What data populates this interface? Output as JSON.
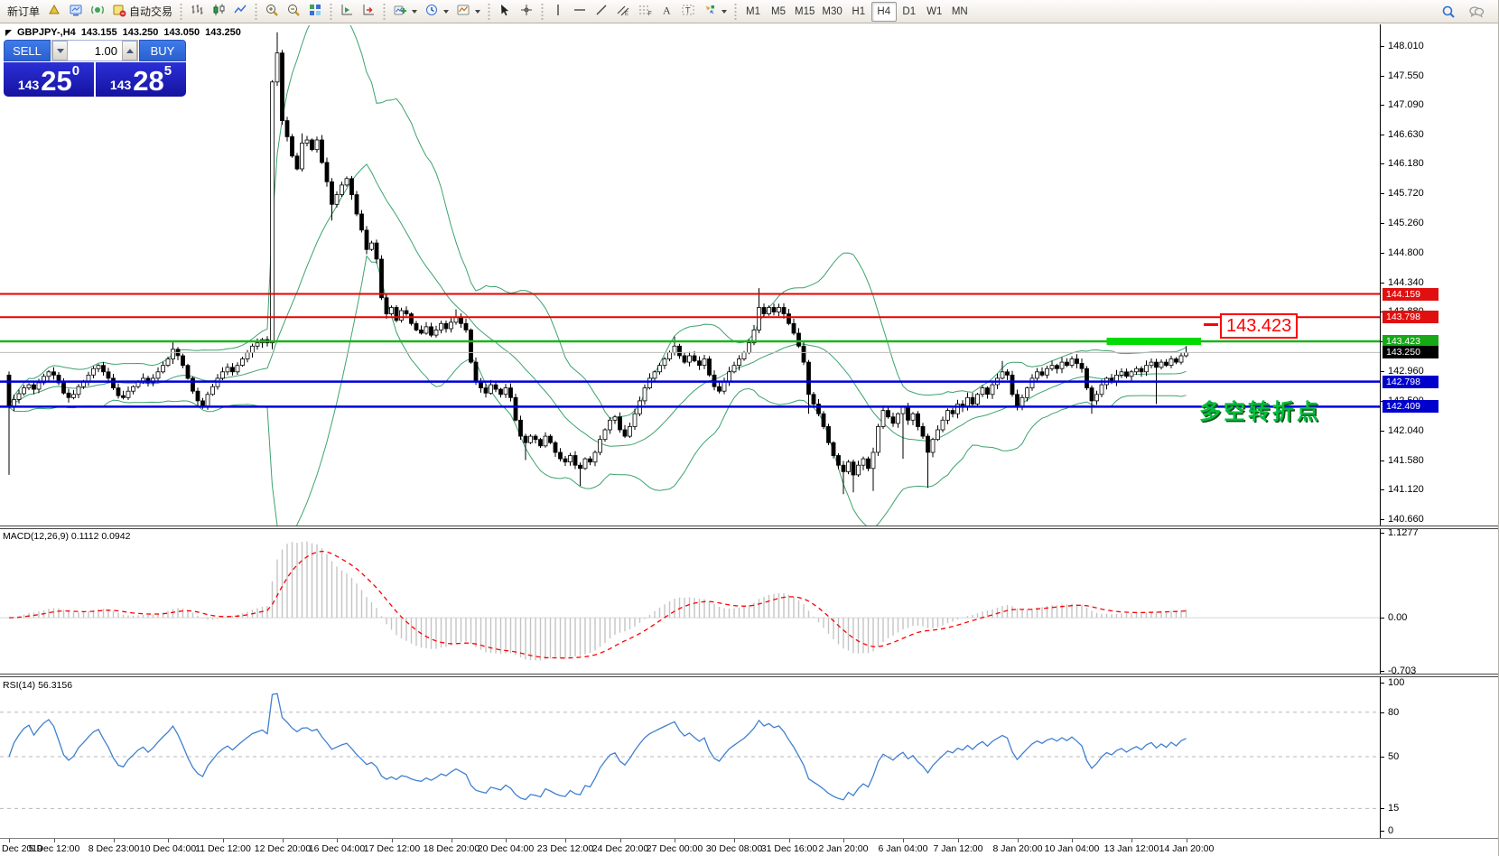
{
  "toolbar": {
    "new_order_label": "新订单",
    "autotrading_label": "自动交易",
    "left_groups": [
      {
        "items": [
          {
            "name": "new-order-button",
            "label": "新订单"
          },
          {
            "name": "metaeditor-button",
            "icon": "metaeditor"
          },
          {
            "name": "terminal-button",
            "icon": "terminal"
          },
          {
            "name": "news-button",
            "icon": "news"
          },
          {
            "name": "autotrading-button",
            "icon": "autotrading",
            "label": "自动交易"
          }
        ]
      },
      {
        "items": [
          {
            "name": "bar-chart-button",
            "icon": "bars"
          },
          {
            "name": "candlestick-chart-button",
            "icon": "candles"
          },
          {
            "name": "line-chart-button",
            "icon": "linechart"
          }
        ]
      },
      {
        "items": [
          {
            "name": "zoom-in-button",
            "icon": "zoomin"
          },
          {
            "name": "zoom-out-button",
            "icon": "zoomout"
          },
          {
            "name": "tile-windows-button",
            "icon": "tiles"
          }
        ]
      },
      {
        "items": [
          {
            "name": "auto-scroll-button",
            "icon": "autoscroll"
          },
          {
            "name": "chart-shift-button",
            "icon": "chartshift"
          }
        ]
      },
      {
        "items": [
          {
            "name": "indicators-button",
            "icon": "indicators",
            "caret": true
          },
          {
            "name": "periods-button",
            "icon": "clock",
            "caret": true
          },
          {
            "name": "templates-button",
            "icon": "template",
            "caret": true
          }
        ]
      },
      {
        "items": [
          {
            "name": "cursor-button",
            "icon": "cursor"
          },
          {
            "name": "crosshair-button",
            "icon": "crosshair"
          }
        ]
      },
      {
        "items": [
          {
            "name": "vertical-line-button",
            "icon": "vline"
          },
          {
            "name": "horizontal-line-button",
            "icon": "hline"
          },
          {
            "name": "trendline-button",
            "icon": "tline"
          },
          {
            "name": "channel-button",
            "icon": "channel"
          },
          {
            "name": "fibonacci-button",
            "icon": "fibo"
          },
          {
            "name": "text-button",
            "icon": "text"
          },
          {
            "name": "text-label-button",
            "icon": "label"
          },
          {
            "name": "arrows-button",
            "icon": "arrows",
            "caret": true
          }
        ]
      },
      {
        "items": [
          {
            "name": "timeframe-m1",
            "label": "M1",
            "tf": true
          },
          {
            "name": "timeframe-m5",
            "label": "M5",
            "tf": true
          },
          {
            "name": "timeframe-m15",
            "label": "M15",
            "tf": true
          },
          {
            "name": "timeframe-m30",
            "label": "M30",
            "tf": true
          },
          {
            "name": "timeframe-h1",
            "label": "H1",
            "tf": true
          },
          {
            "name": "timeframe-h4",
            "label": "H4",
            "tf": true,
            "active": true
          },
          {
            "name": "timeframe-d1",
            "label": "D1",
            "tf": true
          },
          {
            "name": "timeframe-w1",
            "label": "W1",
            "tf": true
          },
          {
            "name": "timeframe-mn",
            "label": "MN",
            "tf": true
          }
        ]
      }
    ],
    "right_items": [
      {
        "name": "search-button",
        "icon": "search"
      },
      {
        "name": "chat-button",
        "icon": "chat"
      }
    ]
  },
  "symbol_bar": {
    "symbol": "GBPJPY-,H4",
    "open": "143.155",
    "high": "143.250",
    "low": "143.050",
    "close": "143.250"
  },
  "trade_panel": {
    "sell_label": "SELL",
    "buy_label": "BUY",
    "volume": "1.00",
    "sell_price_prefix": "143",
    "sell_price_big": "25",
    "sell_price_sup": "0",
    "buy_price_prefix": "143",
    "buy_price_big": "28",
    "buy_price_sup": "5"
  },
  "panel_labels": {
    "macd_label": "MACD(12,26,9) 0.1112 0.0942",
    "rsi_label": "RSI(14) 56.3156"
  },
  "annotations": {
    "price_label": "143.423",
    "note": "多空转折点",
    "highlight": {
      "price": 143.423,
      "from_index": 221,
      "to_index": 240,
      "color": "#00dc00",
      "thickness": 8
    }
  },
  "chart_data": {
    "type": "candlestick",
    "symbol": "GBPJPY-",
    "timeframe": "H4",
    "current_ohlc": {
      "open": 143.155,
      "high": 143.25,
      "low": 143.05,
      "close": 143.25
    },
    "bid": 143.25,
    "ask": 143.285,
    "ylim": [
      140.55,
      148.33
    ],
    "price_ticks": [
      "148.010",
      "147.550",
      "147.090",
      "146.630",
      "146.180",
      "145.720",
      "145.260",
      "144.800",
      "144.340",
      "143.880",
      "143.420",
      "142.960",
      "142.500",
      "142.040",
      "141.580",
      "141.120",
      "140.660"
    ],
    "levels": [
      {
        "price": 144.159,
        "color": "#e80000",
        "width": 2,
        "label": "144.159",
        "label_bg": "#e01010"
      },
      {
        "price": 143.798,
        "color": "#e80000",
        "width": 2,
        "label": "143.798",
        "label_bg": "#e01010"
      },
      {
        "price": 143.423,
        "color": "#1cb31c",
        "width": 2.5,
        "label": "143.423",
        "label_bg": "#17a817"
      },
      {
        "price": 143.25,
        "color": "#bdbdbd",
        "width": 1,
        "label": "143.250",
        "label_bg": "#000000"
      },
      {
        "price": 142.798,
        "color": "#0000dc",
        "width": 2.5,
        "label": "142.798",
        "label_bg": "#0000cd"
      },
      {
        "price": 142.409,
        "color": "#0000dc",
        "width": 2.5,
        "label": "142.409",
        "label_bg": "#0000cd"
      }
    ],
    "time_labels": [
      {
        "text": "Dec 2019",
        "index": 0
      },
      {
        "text": "5 Dec 12:00",
        "index": 9
      },
      {
        "text": "8 Dec 23:00",
        "index": 21
      },
      {
        "text": "10 Dec 04:00",
        "index": 32
      },
      {
        "text": "11 Dec 12:00",
        "index": 43
      },
      {
        "text": "12 Dec 20:00",
        "index": 55
      },
      {
        "text": "16 Dec 04:00",
        "index": 66
      },
      {
        "text": "17 Dec 12:00",
        "index": 77
      },
      {
        "text": "18 Dec 20:00",
        "index": 89
      },
      {
        "text": "20 Dec 04:00",
        "index": 100
      },
      {
        "text": "23 Dec 12:00",
        "index": 112
      },
      {
        "text": "24 Dec 20:00",
        "index": 123
      },
      {
        "text": "27 Dec 00:00",
        "index": 134
      },
      {
        "text": "30 Dec 08:00",
        "index": 146
      },
      {
        "text": "31 Dec 16:00",
        "index": 157
      },
      {
        "text": "2 Jan 20:00",
        "index": 168
      },
      {
        "text": "6 Jan 04:00",
        "index": 180
      },
      {
        "text": "7 Jan 12:00",
        "index": 191
      },
      {
        "text": "8 Jan 20:00",
        "index": 203
      },
      {
        "text": "10 Jan 04:00",
        "index": 214
      },
      {
        "text": "13 Jan 12:00",
        "index": 226
      },
      {
        "text": "14 Jan 20:00",
        "index": 237
      }
    ],
    "first_open": 142.9,
    "closes": [
      142.4,
      142.52,
      142.61,
      142.7,
      142.75,
      142.68,
      142.78,
      142.88,
      142.95,
      142.9,
      142.78,
      142.62,
      142.55,
      142.6,
      142.72,
      142.8,
      142.9,
      143.0,
      143.05,
      142.95,
      142.85,
      142.7,
      142.58,
      142.55,
      142.65,
      142.72,
      142.8,
      142.85,
      142.78,
      142.85,
      142.95,
      143.05,
      143.15,
      143.3,
      143.2,
      143.05,
      142.85,
      142.65,
      142.5,
      142.42,
      142.6,
      142.72,
      142.85,
      142.95,
      143.02,
      142.95,
      143.05,
      143.15,
      143.25,
      143.35,
      143.4,
      143.45,
      143.4,
      147.45,
      147.9,
      146.85,
      146.6,
      146.3,
      146.1,
      146.5,
      146.55,
      146.4,
      146.55,
      146.2,
      145.9,
      145.55,
      145.7,
      145.85,
      145.95,
      145.7,
      145.4,
      145.15,
      144.85,
      144.95,
      144.7,
      144.1,
      143.85,
      143.95,
      143.75,
      143.9,
      143.85,
      143.7,
      143.6,
      143.55,
      143.65,
      143.52,
      143.6,
      143.7,
      143.62,
      143.72,
      143.8,
      143.7,
      143.6,
      143.1,
      142.8,
      142.7,
      142.62,
      142.75,
      142.68,
      142.6,
      142.7,
      142.55,
      142.2,
      141.95,
      141.85,
      141.95,
      141.9,
      141.8,
      141.95,
      141.85,
      141.7,
      141.6,
      141.55,
      141.65,
      141.5,
      141.45,
      141.6,
      141.55,
      141.7,
      141.9,
      142.05,
      142.2,
      142.25,
      142.05,
      141.95,
      142.1,
      142.3,
      142.5,
      142.7,
      142.85,
      142.95,
      143.05,
      143.15,
      143.25,
      143.35,
      143.2,
      143.1,
      143.2,
      143.12,
      143.05,
      143.15,
      142.9,
      142.72,
      142.65,
      142.8,
      142.95,
      143.05,
      143.15,
      143.25,
      143.4,
      143.6,
      143.95,
      143.85,
      143.95,
      143.88,
      143.95,
      143.85,
      143.7,
      143.55,
      143.35,
      143.1,
      142.6,
      142.45,
      142.3,
      142.1,
      141.85,
      141.65,
      141.5,
      141.4,
      141.55,
      141.35,
      141.5,
      141.6,
      141.45,
      141.7,
      142.1,
      142.35,
      142.25,
      142.15,
      142.3,
      142.4,
      142.2,
      142.3,
      142.1,
      141.95,
      141.7,
      141.9,
      142.05,
      142.2,
      142.35,
      142.3,
      142.45,
      142.4,
      142.55,
      142.45,
      142.6,
      142.7,
      142.6,
      142.75,
      142.85,
      142.95,
      142.9,
      142.6,
      142.4,
      142.55,
      142.7,
      142.85,
      142.95,
      142.9,
      143.0,
      143.05,
      143.0,
      143.1,
      143.05,
      143.15,
      143.08,
      143.0,
      142.7,
      142.5,
      142.6,
      142.75,
      142.85,
      142.8,
      142.9,
      142.95,
      142.88,
      142.95,
      143.0,
      142.95,
      143.05,
      143.1,
      143.02,
      143.1,
      143.05,
      143.15,
      143.1,
      143.2,
      143.25
    ],
    "wick_specials": {
      "0": {
        "l": 141.35
      },
      "33": {
        "h": 143.42
      },
      "53": {
        "l": 143.3
      },
      "54": {
        "h": 148.22
      },
      "59": {
        "h": 146.65
      },
      "65": {
        "l": 145.3
      },
      "90": {
        "h": 143.92
      },
      "104": {
        "l": 141.58
      },
      "115": {
        "l": 141.18
      },
      "134": {
        "h": 143.5
      },
      "151": {
        "h": 144.25
      },
      "161": {
        "l": 142.3
      },
      "168": {
        "l": 141.05
      },
      "170": {
        "l": 141.08
      },
      "174": {
        "l": 141.1
      },
      "180": {
        "l": 141.6
      },
      "185": {
        "l": 141.15
      },
      "200": {
        "h": 143.12
      },
      "218": {
        "l": 142.3
      },
      "231": {
        "l": 142.45
      },
      "237": {
        "h": 143.35
      }
    },
    "overlays": {
      "bollinger": {
        "period": 20,
        "deviation": 2,
        "color": "#3da36c"
      }
    },
    "panels": {
      "macd": {
        "fast": 12,
        "slow": 26,
        "signal": 9,
        "current_main": 0.1112,
        "current_signal": 0.0942,
        "ylim": [
          -0.74,
          1.15
        ],
        "ticks": [
          {
            "text": "1.1277",
            "v": 1.1277
          },
          {
            "text": "0.00",
            "v": 0
          },
          {
            "text": "-0.703",
            "v": -0.703
          }
        ],
        "hist_color": "#c4c4c4",
        "signal_color": "#ff0000"
      },
      "rsi": {
        "period": 14,
        "current": 56.3156,
        "ylim": [
          0,
          100
        ],
        "ticks": [
          {
            "text": "100",
            "v": 100
          },
          {
            "text": "80",
            "v": 80
          },
          {
            "text": "50",
            "v": 50
          },
          {
            "text": "15",
            "v": 15
          },
          {
            "text": "0",
            "v": 0
          }
        ],
        "levels": [
          80,
          50,
          15
        ],
        "line_color": "#4080d0"
      }
    },
    "colors": {
      "bull": "#ffffff",
      "bear": "#000000",
      "outline": "#000000",
      "background": "#ffffff"
    }
  }
}
